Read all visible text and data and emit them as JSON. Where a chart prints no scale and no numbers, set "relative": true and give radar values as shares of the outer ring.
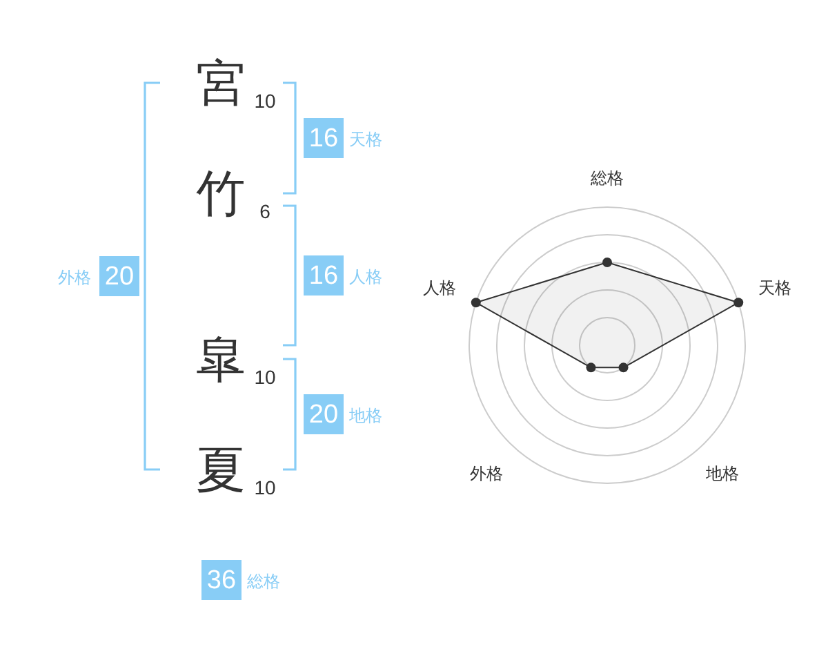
{
  "chart_data": [
    {
      "type": "other",
      "categories": [
        "宮",
        "竹",
        "皐",
        "夏"
      ],
      "values": [
        10,
        6,
        10,
        10
      ],
      "data_labels": true,
      "color": "#333333"
    },
    {
      "type": "other",
      "categories": [
        "天格",
        "人格",
        "地格",
        "外格",
        "総格"
      ],
      "values": [
        16,
        16,
        20,
        20,
        36
      ],
      "data_labels": true,
      "color": "#88cdf6"
    },
    {
      "type": "radar",
      "categories": [
        "総格",
        "天格",
        "地格",
        "外格",
        "人格"
      ],
      "relative": true,
      "grid": true,
      "marker": "circle",
      "series": [
        {
          "color": "#333333",
          "values": [
            0.6,
            1,
            0.2,
            0.2,
            1
          ]
        }
      ]
    }
  ]
}
